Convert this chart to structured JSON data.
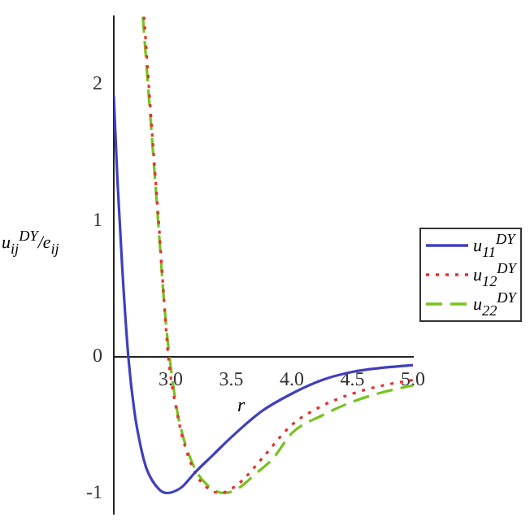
{
  "chart_data": {
    "type": "line",
    "xlabel": "r",
    "ylabel": "u$_{ij}$$^{DY}$/e$_{ij}$",
    "xlim": [
      2.53,
      5.0
    ],
    "ylim": [
      -1.15,
      2.5
    ],
    "xticks": [
      {
        "value": 3,
        "label": "3.0"
      },
      3.5,
      {
        "value": 4,
        "label": "4.0"
      },
      4.5,
      {
        "value": 5,
        "label": "5.0"
      }
    ],
    "yticks": [
      -1,
      0,
      1,
      2
    ],
    "grid": false,
    "legend": "right",
    "marker": "none",
    "series": [
      {
        "name": "u$_{11}$$^{DY}$",
        "color": "#3f3fbf",
        "line_style": "solid",
        "x": [
          2.53,
          2.56,
          2.6,
          2.65,
          2.7,
          2.75,
          2.8,
          2.9,
          2.97,
          3.05,
          3.1,
          3.2,
          3.35,
          3.5,
          3.75,
          4.0,
          4.25,
          4.5,
          4.75,
          5.0
        ],
        "values": [
          1.92,
          1.3,
          0.65,
          0,
          -0.4,
          -0.65,
          -0.82,
          -0.97,
          -1.0,
          -0.98,
          -0.95,
          -0.85,
          -0.72,
          -0.59,
          -0.4,
          -0.27,
          -0.17,
          -0.11,
          -0.08,
          -0.06
        ]
      },
      {
        "name": "u$_{12}$$^{DY}$",
        "color": "#e83030",
        "line_style": "dotted",
        "x": [
          2.78,
          2.85,
          2.9,
          2.95,
          2.98,
          3.05,
          3.1,
          3.2,
          3.3,
          3.41,
          3.5,
          3.6,
          3.75,
          4.0,
          4.25,
          4.5,
          4.75,
          5.0
        ],
        "values": [
          2.5,
          1.6,
          1.0,
          0.35,
          0,
          -0.4,
          -0.6,
          -0.85,
          -0.96,
          -1.0,
          -0.97,
          -0.9,
          -0.75,
          -0.5,
          -0.36,
          -0.27,
          -0.21,
          -0.17
        ]
      },
      {
        "name": "u$_{22}$$^{DY}$",
        "color": "#77c21c",
        "line_style": "dashed",
        "x": [
          2.77,
          2.85,
          2.9,
          2.95,
          2.99,
          3.05,
          3.1,
          3.2,
          3.3,
          3.44,
          3.55,
          3.7,
          3.85,
          4.0,
          4.25,
          4.5,
          4.75,
          5.0
        ],
        "values": [
          2.5,
          1.55,
          0.95,
          0.35,
          0,
          -0.38,
          -0.58,
          -0.82,
          -0.94,
          -1.0,
          -0.97,
          -0.86,
          -0.74,
          -0.56,
          -0.43,
          -0.33,
          -0.26,
          -0.21
        ]
      }
    ]
  }
}
